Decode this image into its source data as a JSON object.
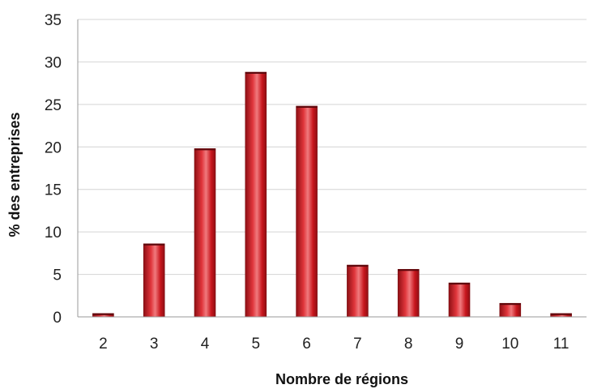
{
  "chart_data": {
    "type": "bar",
    "title": "",
    "xlabel": "Nombre de régions",
    "ylabel": "% des entreprises",
    "categories": [
      "2",
      "3",
      "4",
      "5",
      "6",
      "7",
      "8",
      "9",
      "10",
      "11"
    ],
    "values": [
      0.4,
      8.6,
      19.8,
      28.8,
      24.8,
      6.1,
      5.6,
      4.0,
      1.6,
      0.4
    ],
    "ylim": [
      0,
      35
    ],
    "yticks": [
      "0",
      "5",
      "10",
      "15",
      "20",
      "25",
      "30",
      "35"
    ],
    "grid": true,
    "legend": "none",
    "colors": {
      "bar": "#c8161d",
      "bar_dark": "#8e0f14",
      "bar_light": "#f07a7e",
      "grid": "#d4d4d4"
    }
  }
}
